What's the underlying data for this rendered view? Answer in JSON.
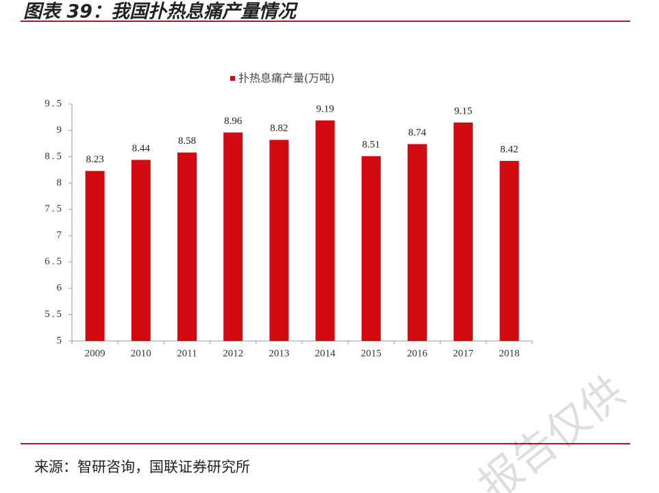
{
  "header": {
    "title": "图表 39：我国扑热息痛产量情况"
  },
  "chart_data": {
    "type": "bar",
    "categories": [
      "2009",
      "2010",
      "2011",
      "2012",
      "2013",
      "2014",
      "2015",
      "2016",
      "2017",
      "2018"
    ],
    "series": [
      {
        "name": "扑热息痛产量(万吨)",
        "color": "#d20a11",
        "values": [
          8.23,
          8.44,
          8.58,
          8.96,
          8.82,
          9.19,
          8.51,
          8.74,
          9.15,
          8.42
        ]
      }
    ],
    "ylim": [
      5,
      9.5
    ],
    "yticks": [
      5,
      5.5,
      6,
      6.5,
      7,
      7.5,
      8,
      8.5,
      9,
      9.5
    ],
    "grid": false,
    "legend": "top"
  },
  "footer": {
    "source": "来源：智研咨询，国联证券研究所"
  },
  "watermark": "报告仅供"
}
